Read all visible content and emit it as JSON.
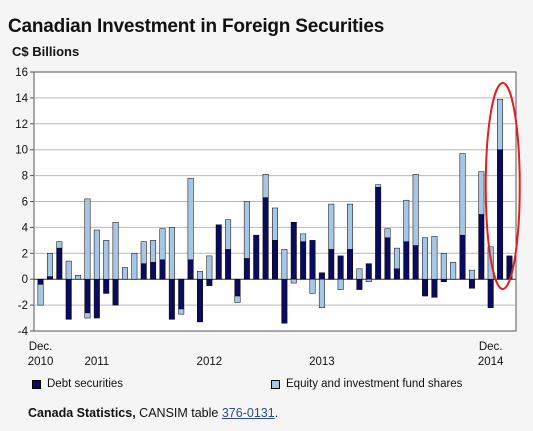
{
  "header": {
    "title": "Canadian Investment in Foreign Securities",
    "units": "C$ Billions"
  },
  "legend": {
    "debt_label": "Debt securities",
    "equity_label": "Equity and investment fund shares"
  },
  "source": {
    "org": "Canada Statistics,",
    "text": "CANSIM table",
    "link_text": "376-0131",
    "period": "."
  },
  "colors": {
    "debt": "#0b0b5e",
    "equity": "#a7c6e6",
    "highlight": "#e02020",
    "grid": "#b9b9b9"
  },
  "chart_data": {
    "type": "bar",
    "stacked": true,
    "grid": true,
    "ylim": [
      -4,
      16
    ],
    "yticks": [
      -4,
      -2,
      0,
      2,
      4,
      6,
      8,
      10,
      12,
      14,
      16
    ],
    "x_labels": [
      {
        "index": 0,
        "lines": [
          "Dec.",
          "2010"
        ]
      },
      {
        "index": 6,
        "lines": [
          "",
          "2011"
        ]
      },
      {
        "index": 18,
        "lines": [
          "",
          "2012"
        ]
      },
      {
        "index": 30,
        "lines": [
          "",
          "2013"
        ]
      },
      {
        "index": 48,
        "lines": [
          "Dec.",
          "2014"
        ]
      }
    ],
    "series": [
      {
        "name": "Debt securities",
        "values": [
          -0.4,
          0.2,
          2.4,
          -3.1,
          0.0,
          -2.6,
          -3.0,
          -1.1,
          -2.0,
          0.0,
          0.0,
          1.2,
          1.3,
          1.5,
          -3.1,
          -2.3,
          1.5,
          -3.3,
          -0.5,
          4.2,
          2.3,
          -1.3,
          1.6,
          3.4,
          6.3,
          3.0,
          -3.4,
          4.4,
          2.9,
          3.0,
          0.5,
          2.3,
          1.8,
          2.3,
          -0.8,
          1.2,
          7.1,
          3.2,
          0.8,
          2.9,
          2.6,
          -1.3,
          -1.4,
          -0.2,
          0.0,
          3.4,
          -0.7,
          5.0,
          -2.2,
          10.0,
          1.8
        ],
        "equity_pos": [
          0.0,
          1.8,
          0.5,
          1.4,
          0.3,
          6.2,
          3.8,
          3.0,
          4.4,
          0.9,
          2.0,
          1.7,
          1.7,
          2.4,
          4.0,
          0.0,
          6.3,
          0.6,
          1.8,
          0.0,
          2.3,
          0.0,
          4.4,
          0.0,
          1.8,
          2.5,
          2.3,
          0.0,
          0.6,
          0.0,
          0.0,
          3.5,
          0.0,
          3.5,
          0.8,
          0.0,
          0.2,
          0.7,
          1.6,
          3.2,
          5.5,
          3.2,
          3.3,
          2.0,
          1.3,
          6.3,
          0.7,
          3.3,
          2.5,
          3.9,
          0.0
        ],
        "equity_neg": [
          -1.6,
          0.0,
          0.0,
          0.0,
          0.0,
          -0.4,
          0.0,
          0.0,
          0.0,
          0.0,
          0.0,
          0.0,
          0.0,
          0.0,
          0.0,
          -0.4,
          0.0,
          0.0,
          0.0,
          0.0,
          0.0,
          -0.5,
          0.0,
          0.0,
          0.0,
          0.0,
          0.0,
          -0.3,
          0.0,
          -1.1,
          -2.2,
          0.0,
          -0.8,
          0.0,
          0.0,
          -0.2,
          0.0,
          0.0,
          0.0,
          0.0,
          0.0,
          0.0,
          0.0,
          0.0,
          0.0,
          0.0,
          0.0,
          0.0,
          0.0,
          0.0,
          0.0
        ]
      },
      {
        "name": "Equity and investment fund shares"
      }
    ]
  }
}
